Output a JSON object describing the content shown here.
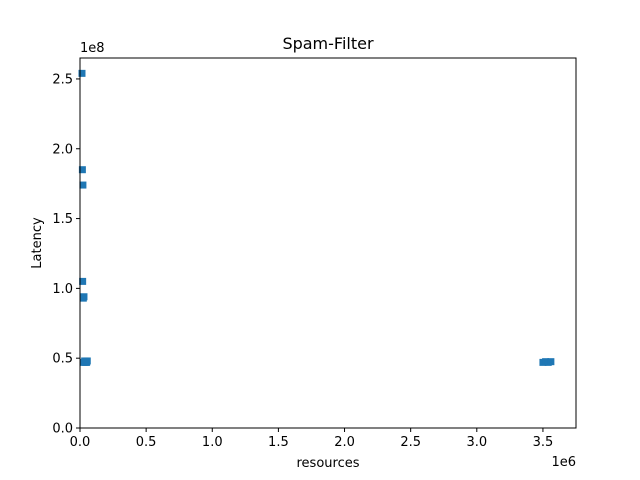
{
  "chart_data": {
    "type": "scatter",
    "title": "Spam-Filter",
    "xlabel": "resources",
    "ylabel": "Latency",
    "x_offset_label": "1e6",
    "y_offset_label": "1e8",
    "xlim": [
      0,
      3750000
    ],
    "ylim": [
      0,
      265000000
    ],
    "x_ticks": [
      0,
      500000,
      1000000,
      1500000,
      2000000,
      2500000,
      3000000,
      3500000
    ],
    "x_tick_labels": [
      "0.0",
      "0.5",
      "1.0",
      "1.5",
      "2.0",
      "2.5",
      "3.0",
      "3.5"
    ],
    "y_ticks": [
      0,
      50000000,
      100000000,
      150000000,
      200000000,
      250000000
    ],
    "y_tick_labels": [
      "0.0",
      "0.5",
      "1.0",
      "1.5",
      "2.0",
      "2.5"
    ],
    "grid": false,
    "marker": "square",
    "colors": {
      "series": "#1f77b4"
    },
    "series": [
      {
        "x": [
          15000,
          18000,
          22000,
          20000,
          25000,
          30000,
          28000,
          35000,
          40000,
          45000,
          50000,
          55000,
          3500000,
          3520000,
          3540000,
          3560000
        ],
        "y": [
          254000000,
          185000000,
          174000000,
          105000000,
          93000000,
          94000000,
          47000000,
          48000000,
          47000000,
          48000000,
          47000000,
          48000000,
          47000000,
          47500000,
          47000000,
          47500000
        ]
      }
    ]
  }
}
